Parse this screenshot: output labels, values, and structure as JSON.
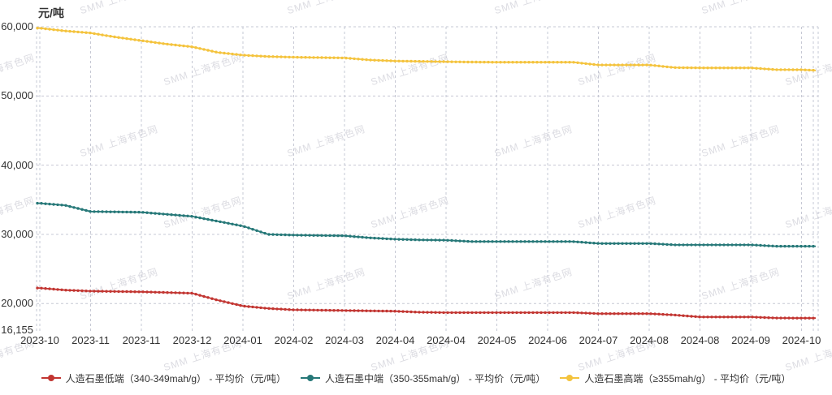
{
  "watermark": {
    "text": "SMM 上海有色网"
  },
  "chart_data": {
    "type": "line",
    "title": "",
    "unit": "元/吨",
    "xlabel": "",
    "ylabel": "元/吨",
    "ylim": [
      16155,
      60000
    ],
    "grid": "dashed",
    "legend_position": "bottom",
    "x_tick_labels": [
      "2023-10",
      "2023-11",
      "2023-11",
      "2023-12",
      "2024-01",
      "2024-02",
      "2024-03",
      "2024-04",
      "2024-04",
      "2024-05",
      "2024-06",
      "2024-07",
      "2024-08",
      "2024-08",
      "2024-09",
      "2024-10"
    ],
    "y_ticks": [
      {
        "label": "60,000",
        "value": 60000
      },
      {
        "label": "50,000",
        "value": 50000
      },
      {
        "label": "40,000",
        "value": 40000
      },
      {
        "label": "30,000",
        "value": 30000
      },
      {
        "label": "20,000",
        "value": 20000
      },
      {
        "label": "16,155",
        "value": 16155
      }
    ],
    "x_sampling": "semi-monthly points from 2023-10 through 2024-10",
    "series": [
      {
        "name": "人造石墨低端（340-349mah/g） - 平均价（元/吨）",
        "color": "#c23531",
        "values": [
          22250,
          21950,
          21800,
          21750,
          21700,
          21600,
          21500,
          20500,
          19650,
          19300,
          19100,
          19050,
          19000,
          18950,
          18900,
          18750,
          18700,
          18700,
          18700,
          18700,
          18700,
          18700,
          18550,
          18550,
          18550,
          18350,
          18070,
          18070,
          18070,
          17920,
          17900,
          17900
        ]
      },
      {
        "name": "人造石墨中端（350-355mah/g） - 平均价（元/吨）",
        "color": "#267878",
        "values": [
          34500,
          34200,
          33300,
          33250,
          33200,
          32900,
          32600,
          31900,
          31200,
          30000,
          29900,
          29850,
          29800,
          29500,
          29300,
          29200,
          29160,
          28960,
          28960,
          28960,
          28960,
          28960,
          28690,
          28690,
          28690,
          28490,
          28490,
          28490,
          28490,
          28290,
          28290,
          28290
        ]
      },
      {
        "name": "人造石墨高端（≥355mah/g） - 平均价（元/吨）",
        "color": "#f4c33d",
        "values": [
          59800,
          59400,
          59100,
          58500,
          58000,
          57500,
          57100,
          56300,
          55900,
          55700,
          55600,
          55550,
          55500,
          55200,
          55050,
          55000,
          54950,
          54900,
          54880,
          54880,
          54880,
          54880,
          54480,
          54480,
          54480,
          54100,
          54060,
          54060,
          54060,
          53800,
          53790,
          53700
        ]
      }
    ]
  }
}
